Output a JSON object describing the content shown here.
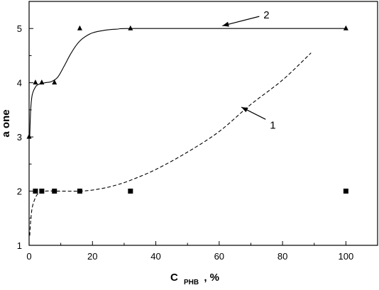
{
  "chart_data": {
    "type": "scatter",
    "xlabel_main": "C",
    "xlabel_sub": "PHB",
    "xlabel_tail": ", %",
    "ylabel": "a one",
    "xlim": [
      0,
      110
    ],
    "ylim": [
      1,
      5.5
    ],
    "xticks": [
      "0",
      "20",
      "40",
      "60",
      "80",
      "100"
    ],
    "yticks": [
      "1",
      "2",
      "3",
      "4",
      "5"
    ],
    "grid": false,
    "series": [
      {
        "marker": "triangle",
        "line": "solid",
        "points": [
          [
            0,
            3
          ],
          [
            2,
            4
          ],
          [
            4,
            4
          ],
          [
            8,
            4
          ],
          [
            16,
            5
          ],
          [
            32,
            5
          ],
          [
            100,
            5
          ]
        ],
        "curve": [
          [
            0.2,
            3.0
          ],
          [
            0.5,
            3.5
          ],
          [
            1,
            3.78
          ],
          [
            2,
            3.92
          ],
          [
            3,
            3.97
          ],
          [
            5,
            4.0
          ],
          [
            7,
            4.02
          ],
          [
            9,
            4.1
          ],
          [
            11,
            4.3
          ],
          [
            13,
            4.52
          ],
          [
            15,
            4.7
          ],
          [
            17,
            4.82
          ],
          [
            20,
            4.92
          ],
          [
            24,
            4.97
          ],
          [
            28,
            4.99
          ],
          [
            32,
            5.0
          ],
          [
            60,
            5.0
          ],
          [
            100,
            5.0
          ]
        ]
      },
      {
        "marker": "square",
        "line": "dashed",
        "points": [
          [
            2,
            2
          ],
          [
            4,
            2
          ],
          [
            8,
            2
          ],
          [
            16,
            2
          ],
          [
            32,
            2
          ],
          [
            100,
            2
          ]
        ],
        "curve": [
          [
            0.2,
            1.18
          ],
          [
            0.5,
            1.45
          ],
          [
            1,
            1.7
          ],
          [
            2,
            1.88
          ],
          [
            3,
            1.96
          ],
          [
            5,
            2.0
          ],
          [
            10,
            2.0
          ],
          [
            16,
            2.0
          ],
          [
            20,
            2.02
          ],
          [
            24,
            2.06
          ],
          [
            28,
            2.12
          ],
          [
            32,
            2.2
          ],
          [
            40,
            2.4
          ],
          [
            50,
            2.72
          ],
          [
            60,
            3.1
          ],
          [
            70,
            3.6
          ],
          [
            80,
            4.05
          ],
          [
            89,
            4.55
          ]
        ]
      }
    ],
    "annotations": [
      {
        "text": "2",
        "x": 74,
        "y": 5.25,
        "arrow_to": [
          61,
          5.05
        ]
      },
      {
        "text": "1",
        "x": 76,
        "y": 3.22,
        "arrow_to": [
          67,
          3.55
        ]
      }
    ]
  }
}
